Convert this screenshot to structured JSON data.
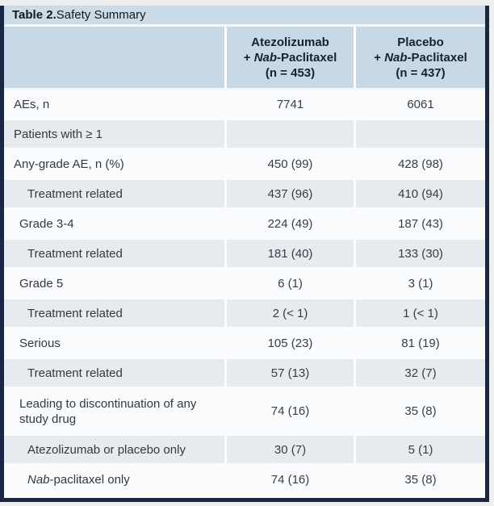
{
  "table": {
    "title_bold": "Table 2.",
    "title_rest": " Safety Summary"
  },
  "header": {
    "columns": [
      {
        "line1": "Atezolizumab",
        "line2_prefix": "+ ",
        "line2_italic": "Nab",
        "line2_suffix": "-Paclitaxel",
        "line3": "(n = 453)"
      },
      {
        "line1": "Placebo",
        "line2_prefix": "+ ",
        "line2_italic": "Nab",
        "line2_suffix": "-Paclitaxel",
        "line3": "(n = 437)"
      }
    ]
  },
  "rows": [
    {
      "label_italic": "",
      "label": "AEs, n",
      "col_a": "7741",
      "col_b": "6061"
    },
    {
      "label_italic": "",
      "label": "Patients with ≥ 1",
      "col_a": "",
      "col_b": ""
    },
    {
      "label_italic": "",
      "label": "Any-grade AE, n (%)",
      "col_a": "450 (99)",
      "col_b": "428 (98)"
    },
    {
      "label_italic": "",
      "label": "Treatment related",
      "col_a": "437 (96)",
      "col_b": "410 (94)"
    },
    {
      "label_italic": "",
      "label": "Grade 3-4",
      "col_a": "224 (49)",
      "col_b": "187 (43)"
    },
    {
      "label_italic": "",
      "label": "Treatment related",
      "col_a": "181 (40)",
      "col_b": "133 (30)"
    },
    {
      "label_italic": "",
      "label": "Grade 5",
      "col_a": "6 (1)",
      "col_b": "3 (1)"
    },
    {
      "label_italic": "",
      "label": "Treatment related",
      "col_a": "2 (< 1)",
      "col_b": "1 (< 1)"
    },
    {
      "label_italic": "",
      "label": "Serious",
      "col_a": "105 (23)",
      "col_b": "81 (19)"
    },
    {
      "label_italic": "",
      "label": "Treatment related",
      "col_a": "57 (13)",
      "col_b": "32 (7)"
    },
    {
      "label_italic": "",
      "label": "Leading to discontinuation of any study drug",
      "col_a": "74 (16)",
      "col_b": "35 (8)"
    },
    {
      "label_italic": "",
      "label": "Atezolizumab or placebo only",
      "col_a": "30 (7)",
      "col_b": "5 (1)"
    },
    {
      "label_italic": "Nab",
      "label": "-paclitaxel only",
      "col_a": "74 (16)",
      "col_b": "35 (8)"
    }
  ],
  "colors": {
    "header_blue": "#c7d8e7",
    "title_bar_blue": "#cbdbe8",
    "row_gray": "#e7eaef",
    "row_white": "#fafbfc",
    "frame_navy": "#182743",
    "divider_white": "#fbfdfe",
    "text_dark": "#34393f"
  }
}
